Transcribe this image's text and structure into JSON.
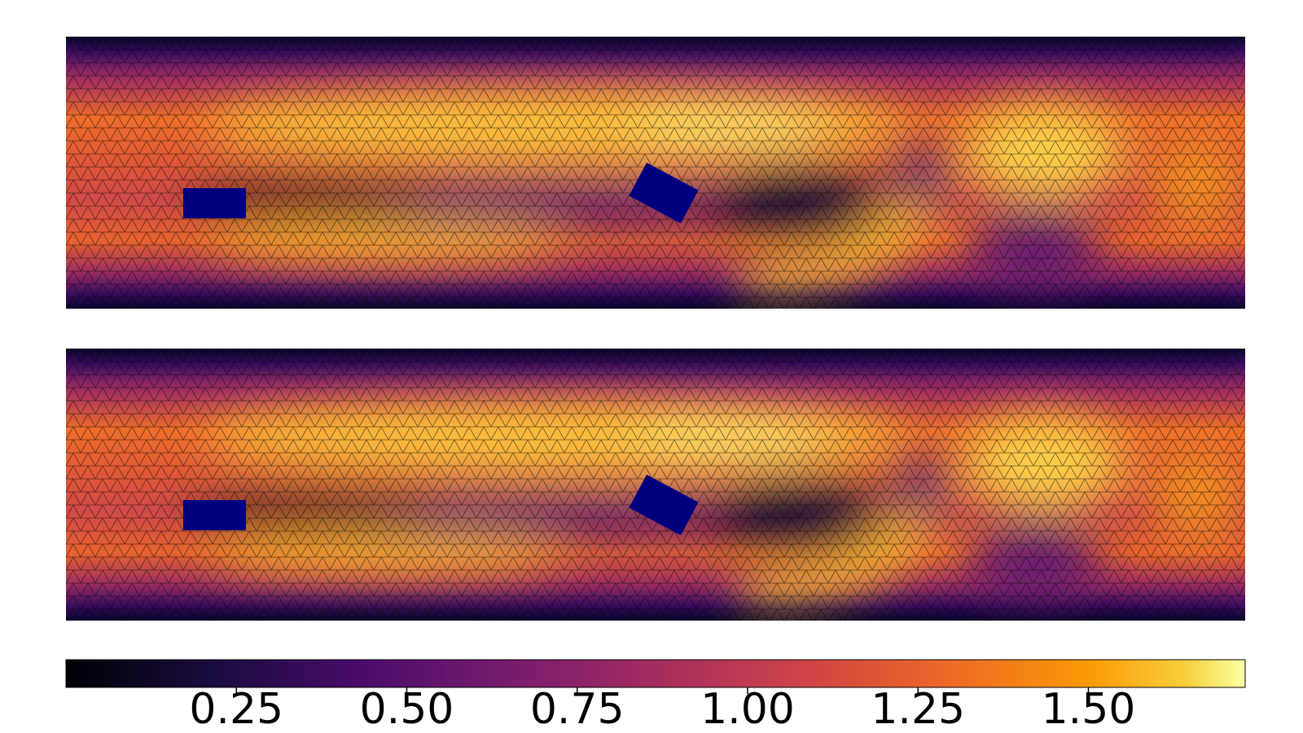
{
  "chart_data": {
    "type": "heatmap",
    "clim": [
      0,
      1.73
    ],
    "ticks": [
      {
        "value": 0.25,
        "label": "0.25"
      },
      {
        "value": 0.5,
        "label": "0.50"
      },
      {
        "value": 0.75,
        "label": "0.75"
      },
      {
        "value": 1.0,
        "label": "1.00"
      },
      {
        "value": 1.25,
        "label": "1.25"
      },
      {
        "value": 1.5,
        "label": "1.50"
      }
    ]
  }
}
